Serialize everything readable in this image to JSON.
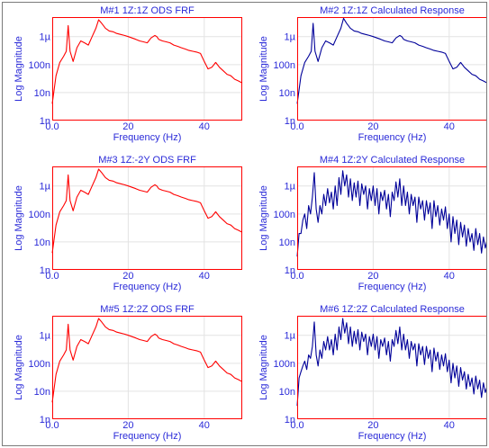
{
  "chart_data": [
    {
      "type": "line",
      "title": "M#1 1Z:1Z ODS FRF",
      "xlabel": "Frequency (Hz)",
      "ylabel": "Log Magnitude",
      "yscale": "log",
      "xlim": [
        0,
        50
      ],
      "ylim": [
        1e-09,
        5e-06
      ],
      "x_ticks": [
        0,
        20,
        40
      ],
      "x_tick_labels": [
        "0.0",
        "20",
        "40"
      ],
      "y_ticks": [
        1e-09,
        1e-08,
        1e-07,
        1e-06
      ],
      "y_tick_labels": [
        "1n",
        "10n",
        "100n",
        "1µ"
      ],
      "grid": true,
      "color": "#ff0000",
      "series": [
        {
          "x": [
            0,
            1,
            2,
            3,
            3.7,
            4.2,
            4.7,
            5.5,
            6.5,
            7.5,
            8.5,
            9.5,
            10.5,
            11.5,
            12.2,
            13,
            14,
            15,
            16,
            17,
            18,
            19,
            20,
            21,
            22,
            23,
            24,
            25,
            26,
            27,
            27.5,
            28,
            29,
            30,
            31,
            32,
            33,
            34,
            35,
            36,
            37,
            38,
            39,
            40,
            41,
            42,
            43,
            44,
            45,
            46,
            47,
            48,
            49,
            50
          ],
          "y": [
            4e-09,
            4e-08,
            1.2e-07,
            2e-07,
            3e-07,
            2.5e-06,
            3e-07,
            1.3e-07,
            4e-07,
            7e-07,
            6e-07,
            5e-07,
            1e-06,
            2e-06,
            4e-06,
            3e-06,
            2e-06,
            1.6e-06,
            1.5e-06,
            1.3e-06,
            1.2e-06,
            1.1e-06,
            1e-06,
            9e-07,
            8e-07,
            7e-07,
            6.5e-07,
            6e-07,
            9e-07,
            1.1e-06,
            1e-06,
            8e-07,
            7e-07,
            6.5e-07,
            6e-07,
            5e-07,
            4.5e-07,
            4e-07,
            3.6e-07,
            3.2e-07,
            3e-07,
            2.8e-07,
            2.5e-07,
            1.3e-07,
            7e-08,
            8e-08,
            1.2e-07,
            8e-08,
            6e-08,
            4.5e-08,
            4e-08,
            3e-08,
            2.6e-08,
            2.2e-08
          ]
        }
      ]
    },
    {
      "type": "line",
      "title": "M#2 1Z:1Z Calculated Response",
      "xlabel": "Frequency (Hz)",
      "ylabel": "Log Magnitude",
      "yscale": "log",
      "xlim": [
        0,
        50
      ],
      "ylim": [
        1e-09,
        5e-06
      ],
      "x_ticks": [
        0,
        20,
        40
      ],
      "x_tick_labels": [
        "0.0",
        "20",
        "40"
      ],
      "y_ticks": [
        1e-09,
        1e-08,
        1e-07,
        1e-06
      ],
      "y_tick_labels": [
        "1n",
        "10n",
        "100n",
        "1µ"
      ],
      "grid": true,
      "color": "#000099",
      "series": [
        {
          "x": [
            0,
            1,
            2,
            3,
            3.7,
            4.2,
            4.7,
            5.5,
            6.5,
            7.5,
            8.5,
            9.5,
            10.5,
            11.5,
            12.2,
            13,
            14,
            15,
            16,
            17,
            18,
            19,
            20,
            21,
            22,
            23,
            24,
            25,
            26,
            27,
            27.5,
            28,
            29,
            30,
            31,
            32,
            33,
            34,
            35,
            36,
            37,
            38,
            39,
            40,
            41,
            42,
            43,
            44,
            45,
            46,
            47,
            48,
            49,
            50
          ],
          "y": [
            4e-09,
            4e-08,
            1.2e-07,
            2e-07,
            3e-07,
            3e-06,
            3e-07,
            1.3e-07,
            4e-07,
            7e-07,
            6e-07,
            5e-07,
            1e-06,
            2e-06,
            4.5e-06,
            3e-06,
            2e-06,
            1.6e-06,
            1.5e-06,
            1.3e-06,
            1.2e-06,
            1.1e-06,
            1e-06,
            9e-07,
            8e-07,
            7e-07,
            6.5e-07,
            6e-07,
            9e-07,
            1.1e-06,
            1e-06,
            8e-07,
            7e-07,
            6.5e-07,
            6e-07,
            5e-07,
            4.5e-07,
            4e-07,
            3.6e-07,
            3.2e-07,
            3e-07,
            2.8e-07,
            2.5e-07,
            1.3e-07,
            7e-08,
            8e-08,
            1.2e-07,
            8e-08,
            6e-08,
            4.5e-08,
            4e-08,
            3e-08,
            2.6e-08,
            2.2e-08
          ]
        }
      ]
    },
    {
      "type": "line",
      "title": "M#3 1Z:-2Y ODS FRF",
      "xlabel": "Frequency (Hz)",
      "ylabel": "Log Magnitude",
      "yscale": "log",
      "xlim": [
        0,
        50
      ],
      "ylim": [
        1e-09,
        5e-06
      ],
      "x_ticks": [
        0,
        20,
        40
      ],
      "x_tick_labels": [
        "0.0",
        "20",
        "40"
      ],
      "y_ticks": [
        1e-09,
        1e-08,
        1e-07,
        1e-06
      ],
      "y_tick_labels": [
        "1n",
        "10n",
        "100n",
        "1µ"
      ],
      "grid": true,
      "color": "#ff0000",
      "series": [
        {
          "x": [
            0,
            1,
            2,
            3,
            3.7,
            4.2,
            4.7,
            5.5,
            6.5,
            7.5,
            8.5,
            9.5,
            10.5,
            11.5,
            12.2,
            13,
            14,
            15,
            16,
            17,
            18,
            19,
            20,
            21,
            22,
            23,
            24,
            25,
            26,
            27,
            27.5,
            28,
            29,
            30,
            31,
            32,
            33,
            34,
            35,
            36,
            37,
            38,
            39,
            40,
            41,
            42,
            43,
            44,
            45,
            46,
            47,
            48,
            49,
            50
          ],
          "y": [
            4e-09,
            4e-08,
            1.2e-07,
            2e-07,
            3e-07,
            2.5e-06,
            3e-07,
            1.3e-07,
            4e-07,
            7e-07,
            6e-07,
            5e-07,
            1e-06,
            2e-06,
            4e-06,
            3e-06,
            2e-06,
            1.6e-06,
            1.5e-06,
            1.3e-06,
            1.2e-06,
            1.1e-06,
            1e-06,
            9e-07,
            8e-07,
            7e-07,
            6.5e-07,
            6e-07,
            9e-07,
            1.1e-06,
            1e-06,
            8e-07,
            7e-07,
            6.5e-07,
            6e-07,
            5e-07,
            4.5e-07,
            4e-07,
            3.6e-07,
            3.2e-07,
            3e-07,
            2.8e-07,
            2.5e-07,
            1.3e-07,
            7e-08,
            8e-08,
            1.2e-07,
            8e-08,
            6e-08,
            4.5e-08,
            4e-08,
            3e-08,
            2.6e-08,
            2.2e-08
          ]
        }
      ]
    },
    {
      "type": "line",
      "title": "M#4 1Z:2Y Calculated Response",
      "xlabel": "Frequency (Hz)",
      "ylabel": "Log Magnitude",
      "yscale": "log",
      "xlim": [
        0,
        50
      ],
      "ylim": [
        1e-09,
        5e-06
      ],
      "x_ticks": [
        0,
        20,
        40
      ],
      "x_tick_labels": [
        "0.0",
        "20",
        "40"
      ],
      "y_ticks": [
        1e-09,
        1e-08,
        1e-07,
        1e-06
      ],
      "y_tick_labels": [
        "1n",
        "10n",
        "100n",
        "1µ"
      ],
      "grid": true,
      "color": "#000099",
      "series": [
        {
          "x": [
            0,
            0.5,
            1,
            1.5,
            2,
            2.5,
            3,
            3.5,
            4,
            4.5,
            5,
            5.5,
            6,
            6.5,
            7,
            7.5,
            8,
            8.5,
            9,
            9.5,
            10,
            10.5,
            11,
            11.5,
            12,
            12.5,
            13,
            13.5,
            14,
            14.5,
            15,
            15.5,
            16,
            16.5,
            17,
            17.5,
            18,
            18.5,
            19,
            19.5,
            20,
            20.5,
            21,
            21.5,
            22,
            22.5,
            23,
            23.5,
            24,
            24.5,
            25,
            25.5,
            26,
            26.5,
            27,
            27.5,
            28,
            28.5,
            29,
            29.5,
            30,
            30.5,
            31,
            31.5,
            32,
            32.5,
            33,
            33.5,
            34,
            34.5,
            35,
            35.5,
            36,
            36.5,
            37,
            37.5,
            38,
            38.5,
            39,
            39.5,
            40,
            40.5,
            41,
            41.5,
            42,
            42.5,
            43,
            43.5,
            44,
            44.5,
            45,
            45.5,
            46,
            46.5,
            47,
            47.5,
            48,
            48.5,
            49,
            49.5,
            50
          ],
          "y": [
            3e-09,
            2e-08,
            2e-08,
            6e-08,
            1e-07,
            3e-08,
            2e-07,
            1e-07,
            4e-07,
            3e-06,
            1.5e-07,
            5e-08,
            2e-07,
            1e-07,
            5e-07,
            2e-07,
            8e-07,
            2.5e-07,
            6e-07,
            1.5e-07,
            1e-06,
            2e-07,
            2e-06,
            5e-07,
            3.5e-06,
            1e-06,
            2.5e-06,
            4e-07,
            1.8e-06,
            3e-07,
            1.3e-06,
            4e-07,
            1.5e-06,
            2e-07,
            1.2e-06,
            5e-07,
            1e-06,
            1.5e-07,
            8e-07,
            3e-07,
            1e-06,
            2e-07,
            8e-07,
            1e-07,
            6e-07,
            3e-07,
            7e-07,
            1.5e-07,
            5e-07,
            8e-08,
            6e-07,
            3e-07,
            1.4e-06,
            4e-07,
            1.8e-06,
            2e-07,
            1e-06,
            2e-07,
            6e-07,
            1e-07,
            5e-07,
            2e-07,
            4e-07,
            5e-08,
            4e-07,
            1.5e-07,
            3e-07,
            6e-08,
            3e-07,
            1e-07,
            2.5e-07,
            3e-08,
            3e-07,
            8e-08,
            2e-07,
            4e-08,
            1.5e-07,
            6e-08,
            1.8e-07,
            3e-08,
            1e-07,
            1e-08,
            8e-08,
            2e-08,
            6e-08,
            8e-09,
            5e-08,
            1.5e-08,
            4e-08,
            7e-09,
            3e-08,
            1e-08,
            2e-08,
            5e-09,
            3e-08,
            8e-09,
            2e-08,
            4e-09,
            1.5e-08,
            6e-09,
            1.2e-08
          ]
        }
      ]
    },
    {
      "type": "line",
      "title": "M#5 1Z:2Z ODS FRF",
      "xlabel": "Frequency (Hz)",
      "ylabel": "Log Magnitude",
      "yscale": "log",
      "xlim": [
        0,
        50
      ],
      "ylim": [
        1e-09,
        5e-06
      ],
      "x_ticks": [
        0,
        20,
        40
      ],
      "x_tick_labels": [
        "0.0",
        "20",
        "40"
      ],
      "y_ticks": [
        1e-09,
        1e-08,
        1e-07,
        1e-06
      ],
      "y_tick_labels": [
        "1n",
        "10n",
        "100n",
        "1µ"
      ],
      "grid": true,
      "color": "#ff0000",
      "series": [
        {
          "x": [
            0,
            1,
            2,
            3,
            3.7,
            4.2,
            4.7,
            5.5,
            6.5,
            7.5,
            8.5,
            9.5,
            10.5,
            11.5,
            12.2,
            13,
            14,
            15,
            16,
            17,
            18,
            19,
            20,
            21,
            22,
            23,
            24,
            25,
            26,
            27,
            27.5,
            28,
            29,
            30,
            31,
            32,
            33,
            34,
            35,
            36,
            37,
            38,
            39,
            40,
            41,
            42,
            43,
            44,
            45,
            46,
            47,
            48,
            49,
            50
          ],
          "y": [
            4e-09,
            4e-08,
            1.2e-07,
            2e-07,
            3e-07,
            2.5e-06,
            3e-07,
            1.3e-07,
            4e-07,
            7e-07,
            6e-07,
            5e-07,
            1e-06,
            2e-06,
            4e-06,
            3e-06,
            2e-06,
            1.6e-06,
            1.5e-06,
            1.3e-06,
            1.2e-06,
            1.1e-06,
            1e-06,
            9e-07,
            8e-07,
            7e-07,
            6.5e-07,
            6e-07,
            9e-07,
            1.1e-06,
            1e-06,
            8e-07,
            7e-07,
            6.5e-07,
            6e-07,
            5e-07,
            4.5e-07,
            4e-07,
            3.6e-07,
            3.2e-07,
            3e-07,
            2.8e-07,
            2.5e-07,
            1.3e-07,
            7e-08,
            8e-08,
            1.2e-07,
            8e-08,
            6e-08,
            4.5e-08,
            4e-08,
            3e-08,
            2.6e-08,
            2.2e-08
          ]
        }
      ]
    },
    {
      "type": "line",
      "title": "M#6 1Z:2Z Calculated Response",
      "xlabel": "Frequency (Hz)",
      "ylabel": "Log Magnitude",
      "yscale": "log",
      "xlim": [
        0,
        50
      ],
      "ylim": [
        1e-09,
        5e-06
      ],
      "x_ticks": [
        0,
        20,
        40
      ],
      "x_tick_labels": [
        "0.0",
        "20",
        "40"
      ],
      "y_ticks": [
        1e-09,
        1e-08,
        1e-07,
        1e-06
      ],
      "y_tick_labels": [
        "1n",
        "10n",
        "100n",
        "1µ"
      ],
      "grid": true,
      "color": "#000099",
      "series": [
        {
          "x": [
            0,
            0.5,
            1,
            1.5,
            2,
            2.5,
            3,
            3.5,
            4,
            4.5,
            5,
            5.5,
            6,
            6.5,
            7,
            7.5,
            8,
            8.5,
            9,
            9.5,
            10,
            10.5,
            11,
            11.5,
            12,
            12.5,
            13,
            13.5,
            14,
            14.5,
            15,
            15.5,
            16,
            16.5,
            17,
            17.5,
            18,
            18.5,
            19,
            19.5,
            20,
            20.5,
            21,
            21.5,
            22,
            22.5,
            23,
            23.5,
            24,
            24.5,
            25,
            25.5,
            26,
            26.5,
            27,
            27.5,
            28,
            28.5,
            29,
            29.5,
            30,
            30.5,
            31,
            31.5,
            32,
            32.5,
            33,
            33.5,
            34,
            34.5,
            35,
            35.5,
            36,
            36.5,
            37,
            37.5,
            38,
            38.5,
            39,
            39.5,
            40,
            40.5,
            41,
            41.5,
            42,
            42.5,
            43,
            43.5,
            44,
            44.5,
            45,
            45.5,
            46,
            46.5,
            47,
            47.5,
            48,
            48.5,
            49,
            49.5,
            50
          ],
          "y": [
            3e-09,
            3e-08,
            5e-08,
            8e-08,
            1.2e-07,
            6e-08,
            2e-07,
            1.5e-07,
            4e-07,
            3e-06,
            2e-07,
            8e-08,
            3e-07,
            1.5e-07,
            6e-07,
            3e-07,
            9e-07,
            3e-07,
            7e-07,
            2e-07,
            1.1e-06,
            3e-07,
            2e-06,
            7e-07,
            4e-06,
            1.2e-06,
            2.8e-06,
            5e-07,
            2e-06,
            4e-07,
            1.4e-06,
            5e-07,
            1.6e-06,
            3e-07,
            1.3e-06,
            6e-07,
            1.1e-06,
            2e-07,
            9e-07,
            4e-07,
            1.1e-06,
            3e-07,
            9e-07,
            1.5e-07,
            7e-07,
            4e-07,
            8e-07,
            2e-07,
            6e-07,
            1.2e-07,
            7e-07,
            4e-07,
            1.5e-06,
            5e-07,
            2e-06,
            3e-07,
            1.1e-06,
            3e-07,
            7e-07,
            1.5e-07,
            6e-07,
            3e-07,
            5e-07,
            8e-08,
            5e-07,
            2e-07,
            4e-07,
            9e-08,
            4e-07,
            1.5e-07,
            3e-07,
            5e-08,
            3.5e-07,
            1.2e-07,
            2.5e-07,
            6e-08,
            2e-07,
            8e-08,
            2.2e-07,
            5e-08,
            1.3e-07,
            2e-08,
            1e-07,
            3e-08,
            8e-08,
            1.5e-08,
            7e-08,
            2.5e-08,
            5e-08,
            1.2e-08,
            4e-08,
            1.5e-08,
            3e-08,
            8e-09,
            3.5e-08,
            1.2e-08,
            2.5e-08,
            6e-09,
            2e-08,
            9e-09,
            1.5e-08
          ]
        }
      ]
    }
  ]
}
